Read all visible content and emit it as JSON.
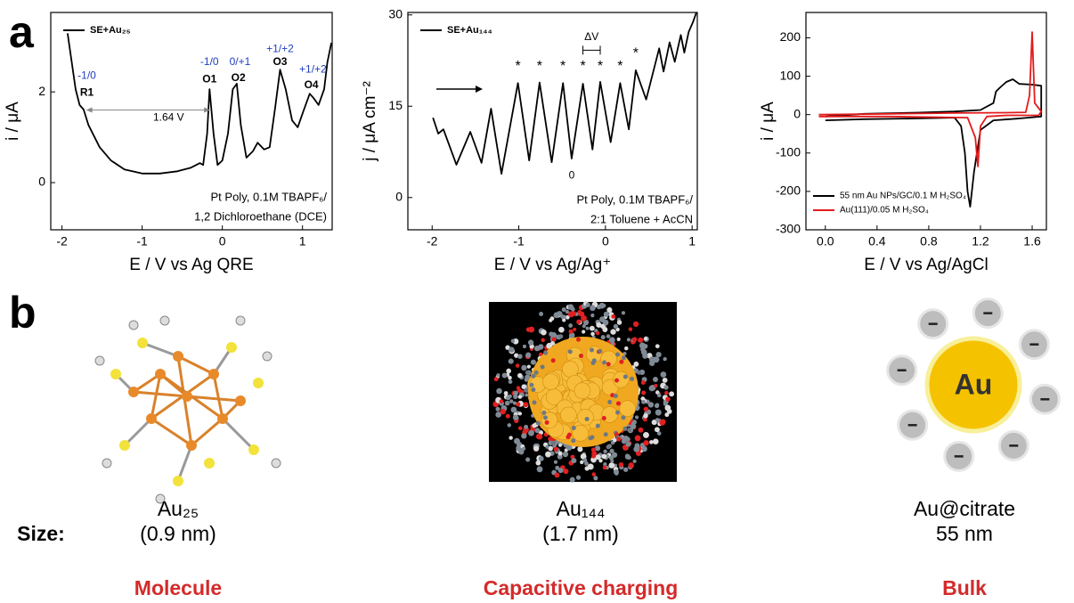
{
  "panel_labels": [
    "a",
    "b"
  ],
  "chart_data": [
    {
      "type": "line",
      "xlabel": "E / V vs Ag QRE",
      "ylabel": "i / μA",
      "xlim": [
        -2.14,
        1.37
      ],
      "ylim": [
        -1.04,
        3.75
      ],
      "xticks": [
        -2,
        -1,
        0,
        1
      ],
      "yticks": [
        0,
        2
      ],
      "legend": "upper left",
      "series": [
        {
          "name": "SE+Au₂₅",
          "color": "#000000",
          "x": [
            -1.93,
            -1.83,
            -1.78,
            -1.73,
            -1.67,
            -1.53,
            -1.39,
            -1.22,
            -1.0,
            -0.78,
            -0.56,
            -0.39,
            -0.28,
            -0.24,
            -0.19,
            -0.16,
            -0.11,
            -0.06,
            0.0,
            0.07,
            0.13,
            0.18,
            0.23,
            0.3,
            0.38,
            0.44,
            0.52,
            0.59,
            0.66,
            0.72,
            0.79,
            0.87,
            0.94,
            1.01,
            1.09,
            1.14,
            1.2,
            1.27,
            1.31,
            1.36
          ],
          "values": [
            3.29,
            2.06,
            1.71,
            1.61,
            1.27,
            0.78,
            0.49,
            0.29,
            0.2,
            0.2,
            0.25,
            0.33,
            0.43,
            0.39,
            1.08,
            2.06,
            1.08,
            0.39,
            0.49,
            1.08,
            2.06,
            2.18,
            1.27,
            0.55,
            0.69,
            0.88,
            0.73,
            0.78,
            1.67,
            2.49,
            2.06,
            1.37,
            1.22,
            1.57,
            1.96,
            1.86,
            1.71,
            2.06,
            2.65,
            3.08
          ]
        }
      ],
      "annotations": [
        {
          "text": "-1/0",
          "color": "#1f3fbf"
        },
        {
          "text": "R1",
          "color": "#000000"
        },
        {
          "text": "-1/0",
          "color": "#1f3fbf"
        },
        {
          "text": "O1",
          "color": "#000000"
        },
        {
          "text": "0/+1",
          "color": "#1f3fbf"
        },
        {
          "text": "O2",
          "color": "#000000"
        },
        {
          "text": "+1/+2",
          "color": "#1f3fbf"
        },
        {
          "text": "O3",
          "color": "#000000"
        },
        {
          "text": "+1/+2",
          "color": "#1f3fbf"
        },
        {
          "text": "O4",
          "color": "#000000"
        },
        {
          "text": "1.64 V",
          "color": "#000000"
        }
      ],
      "note": [
        "Pt Poly, 0.1M TBAPF₆/",
        "1,2 Dichloroethane (DCE)"
      ]
    },
    {
      "type": "line",
      "xlabel": "E / V vs Ag/Ag⁺",
      "ylabel": "j / μA cm⁻²",
      "xlim": [
        -2.28,
        1.06
      ],
      "ylim": [
        -5.3,
        30.4
      ],
      "xticks": [
        -2,
        -1,
        0,
        1
      ],
      "yticks": [
        0,
        15,
        30
      ],
      "legend": "upper left",
      "series": [
        {
          "name": "SE+Au₁₄₄",
          "color": "#000000",
          "x": [
            -1.99,
            -1.93,
            -1.87,
            -1.72,
            -1.56,
            -1.43,
            -1.32,
            -1.2,
            -1.01,
            -0.88,
            -0.76,
            -0.62,
            -0.49,
            -0.39,
            -0.26,
            -0.15,
            -0.06,
            0.06,
            0.17,
            0.27,
            0.35,
            0.47,
            0.62,
            0.67,
            0.74,
            0.8,
            0.87,
            0.91,
            0.96,
            1.01,
            1.05
          ],
          "values": [
            13.1,
            10.5,
            11.2,
            5.4,
            10.8,
            5.7,
            14.6,
            3.9,
            18.8,
            6.1,
            18.9,
            5.8,
            18.8,
            6.4,
            18.7,
            7.9,
            19.0,
            9.1,
            18.8,
            11.2,
            20.9,
            16.1,
            24.5,
            20.7,
            25.5,
            22.3,
            26.7,
            23.8,
            27.2,
            28.8,
            30.4
          ]
        }
      ],
      "annotations": [
        {
          "text": "*",
          "color": "#000000"
        },
        {
          "text": "*",
          "color": "#000000"
        },
        {
          "text": "*",
          "color": "#000000"
        },
        {
          "text": "*",
          "color": "#000000"
        },
        {
          "text": "*",
          "color": "#000000"
        },
        {
          "text": "*",
          "color": "#000000"
        },
        {
          "text": "*",
          "color": "#000000"
        },
        {
          "text": "0",
          "color": "#000000"
        },
        {
          "text": "ΔV",
          "color": "#000000"
        }
      ],
      "note": [
        "Pt Poly, 0.1M TBAPF₆/",
        "2:1 Toluene + AcCN"
      ]
    },
    {
      "type": "line",
      "xlabel": "E / V vs Ag/AgCl",
      "ylabel": "i / μA",
      "xlim": [
        -0.15,
        1.71
      ],
      "ylim": [
        -300,
        266
      ],
      "xticks": [
        {
          "value": 0,
          "label": "0.0"
        },
        0.4,
        0.8,
        1.2,
        1.6
      ],
      "yticks": [
        200,
        100,
        0,
        -100,
        -200,
        -300
      ],
      "legend": "lower left",
      "series": [
        {
          "name": "55 nm Au NPs/GC/0.1 M H₂SO₄",
          "color": "#000000",
          "x": [
            0,
            0.3,
            0.7,
            1.0,
            1.05,
            1.08,
            1.1,
            1.12,
            1.15,
            1.2,
            1.3,
            1.5,
            1.67,
            1.67,
            1.6,
            1.5,
            1.45,
            1.4,
            1.35,
            1.32,
            1.3,
            1.2,
            1.0,
            0.7,
            0.3,
            0
          ],
          "values": [
            -15,
            -12,
            -10,
            -8,
            -30,
            -100,
            -200,
            -240,
            -150,
            -40,
            -15,
            -10,
            -5,
            75,
            78,
            80,
            92,
            85,
            70,
            60,
            30,
            12,
            8,
            5,
            2,
            -5
          ]
        },
        {
          "name": "Au(111)/0.05 M H₂SO₄",
          "color": "#e41a1c",
          "x": [
            -0.05,
            0.5,
            1.0,
            1.4,
            1.55,
            1.58,
            1.6,
            1.62,
            1.67,
            1.65,
            1.4,
            1.25,
            1.2,
            1.18,
            1.16,
            1.1,
            0.5,
            -0.05
          ],
          "values": [
            0,
            2,
            4,
            5,
            6,
            50,
            215,
            30,
            8,
            -2,
            -2,
            -5,
            -30,
            -135,
            -60,
            -8,
            -5,
            -5
          ]
        }
      ],
      "annotations": [],
      "note": []
    }
  ],
  "size_label": "Size:",
  "structures": [
    {
      "name": "Au₂₅",
      "size": "(0.9 nm)",
      "regime": "Molecule"
    },
    {
      "name": "Au₁₄₄",
      "size": "(1.7 nm)",
      "regime": "Capacitive charging"
    },
    {
      "name": "Au@citrate",
      "size": "55 nm",
      "regime": "Bulk",
      "core_label": "Au"
    }
  ]
}
